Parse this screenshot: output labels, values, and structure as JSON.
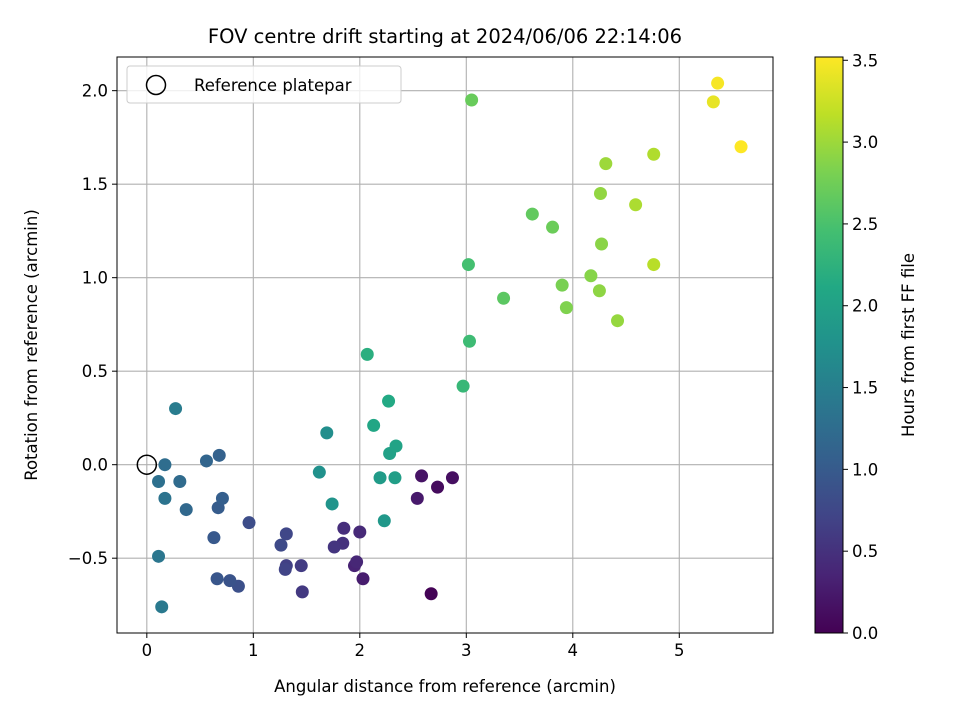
{
  "chart_data": {
    "type": "scatter",
    "title": "FOV centre drift starting at 2024/06/06 22:14:06",
    "xlabel": "Angular distance from reference (arcmin)",
    "ylabel": "Rotation from reference (arcmin)",
    "xlim": [
      -0.28,
      5.88
    ],
    "ylim": [
      -0.9,
      2.18
    ],
    "xticks": [
      0,
      1,
      2,
      3,
      4,
      5
    ],
    "xtick_labels": [
      "0",
      "1",
      "2",
      "3",
      "4",
      "5"
    ],
    "yticks": [
      -0.5,
      0.0,
      0.5,
      1.0,
      1.5,
      2.0
    ],
    "ytick_labels": [
      "−0.5",
      "0.0",
      "0.5",
      "1.0",
      "1.5",
      "2.0"
    ],
    "grid": true,
    "legend": {
      "position": "upper-left",
      "entries": [
        "Reference platepar"
      ]
    },
    "reference_point": {
      "x": 0,
      "y": 0
    },
    "colorbar": {
      "label": "Hours from first FF file",
      "colormap": "viridis",
      "range": [
        0,
        3.52
      ],
      "ticks": [
        0.0,
        0.5,
        1.0,
        1.5,
        2.0,
        2.5,
        3.0,
        3.5
      ],
      "tick_labels": [
        "0.0",
        "0.5",
        "1.0",
        "1.5",
        "2.0",
        "2.5",
        "3.0",
        "3.5"
      ]
    },
    "points": [
      {
        "x": 2.67,
        "y": -0.69,
        "c": 0.02
      },
      {
        "x": 2.73,
        "y": -0.12,
        "c": 0.1
      },
      {
        "x": 2.87,
        "y": -0.07,
        "c": 0.14
      },
      {
        "x": 2.58,
        "y": -0.06,
        "c": 0.18
      },
      {
        "x": 2.54,
        "y": -0.18,
        "c": 0.24
      },
      {
        "x": 2.03,
        "y": -0.61,
        "c": 0.28
      },
      {
        "x": 1.95,
        "y": -0.54,
        "c": 0.34
      },
      {
        "x": 1.97,
        "y": -0.52,
        "c": 0.38
      },
      {
        "x": 2.0,
        "y": -0.36,
        "c": 0.42
      },
      {
        "x": 1.85,
        "y": -0.34,
        "c": 0.46
      },
      {
        "x": 1.84,
        "y": -0.42,
        "c": 0.5
      },
      {
        "x": 1.76,
        "y": -0.44,
        "c": 0.54
      },
      {
        "x": 1.46,
        "y": -0.68,
        "c": 0.58
      },
      {
        "x": 1.45,
        "y": -0.54,
        "c": 0.62
      },
      {
        "x": 1.31,
        "y": -0.54,
        "c": 0.66
      },
      {
        "x": 1.3,
        "y": -0.56,
        "c": 0.7
      },
      {
        "x": 1.31,
        "y": -0.37,
        "c": 0.74
      },
      {
        "x": 1.26,
        "y": -0.43,
        "c": 0.78
      },
      {
        "x": 0.96,
        "y": -0.31,
        "c": 0.82
      },
      {
        "x": 0.86,
        "y": -0.65,
        "c": 0.86
      },
      {
        "x": 0.78,
        "y": -0.62,
        "c": 0.9
      },
      {
        "x": 0.66,
        "y": -0.61,
        "c": 0.94
      },
      {
        "x": 0.63,
        "y": -0.39,
        "c": 0.98
      },
      {
        "x": 0.67,
        "y": -0.23,
        "c": 1.02
      },
      {
        "x": 0.71,
        "y": -0.18,
        "c": 1.06
      },
      {
        "x": 0.68,
        "y": 0.05,
        "c": 1.1
      },
      {
        "x": 0.56,
        "y": 0.02,
        "c": 1.14
      },
      {
        "x": 0.37,
        "y": -0.24,
        "c": 1.18
      },
      {
        "x": 0.31,
        "y": -0.09,
        "c": 1.22
      },
      {
        "x": 0.17,
        "y": 0.0,
        "c": 1.26
      },
      {
        "x": 0.11,
        "y": -0.09,
        "c": 1.3
      },
      {
        "x": 0.17,
        "y": -0.18,
        "c": 1.34
      },
      {
        "x": 0.11,
        "y": -0.49,
        "c": 1.38
      },
      {
        "x": 0.14,
        "y": -0.76,
        "c": 1.42
      },
      {
        "x": 0.27,
        "y": 0.3,
        "c": 1.46
      },
      {
        "x": 1.69,
        "y": 0.17,
        "c": 1.72
      },
      {
        "x": 1.62,
        "y": -0.04,
        "c": 1.76
      },
      {
        "x": 1.74,
        "y": -0.21,
        "c": 1.8
      },
      {
        "x": 2.23,
        "y": -0.3,
        "c": 1.86
      },
      {
        "x": 2.19,
        "y": -0.07,
        "c": 1.92
      },
      {
        "x": 2.33,
        "y": -0.07,
        "c": 1.96
      },
      {
        "x": 2.28,
        "y": 0.06,
        "c": 2.0
      },
      {
        "x": 2.34,
        "y": 0.1,
        "c": 2.04
      },
      {
        "x": 2.13,
        "y": 0.21,
        "c": 2.08
      },
      {
        "x": 2.27,
        "y": 0.34,
        "c": 2.12
      },
      {
        "x": 2.07,
        "y": 0.59,
        "c": 2.2
      },
      {
        "x": 2.97,
        "y": 0.42,
        "c": 2.34
      },
      {
        "x": 3.03,
        "y": 0.66,
        "c": 2.4
      },
      {
        "x": 3.02,
        "y": 1.07,
        "c": 2.46
      },
      {
        "x": 3.35,
        "y": 0.89,
        "c": 2.62
      },
      {
        "x": 3.62,
        "y": 1.34,
        "c": 2.66
      },
      {
        "x": 3.81,
        "y": 1.27,
        "c": 2.72
      },
      {
        "x": 3.05,
        "y": 1.95,
        "c": 2.7
      },
      {
        "x": 3.9,
        "y": 0.96,
        "c": 2.8
      },
      {
        "x": 3.94,
        "y": 0.84,
        "c": 2.84
      },
      {
        "x": 4.17,
        "y": 1.01,
        "c": 2.88
      },
      {
        "x": 4.25,
        "y": 0.93,
        "c": 2.92
      },
      {
        "x": 4.27,
        "y": 1.18,
        "c": 2.9
      },
      {
        "x": 4.26,
        "y": 1.45,
        "c": 2.94
      },
      {
        "x": 4.42,
        "y": 0.77,
        "c": 2.96
      },
      {
        "x": 4.31,
        "y": 1.61,
        "c": 3.0
      },
      {
        "x": 4.59,
        "y": 1.39,
        "c": 3.08
      },
      {
        "x": 4.76,
        "y": 1.66,
        "c": 3.1
      },
      {
        "x": 4.76,
        "y": 1.07,
        "c": 3.14
      },
      {
        "x": 5.32,
        "y": 1.94,
        "c": 3.4
      },
      {
        "x": 5.36,
        "y": 2.04,
        "c": 3.48
      },
      {
        "x": 5.58,
        "y": 1.7,
        "c": 3.52
      }
    ]
  }
}
